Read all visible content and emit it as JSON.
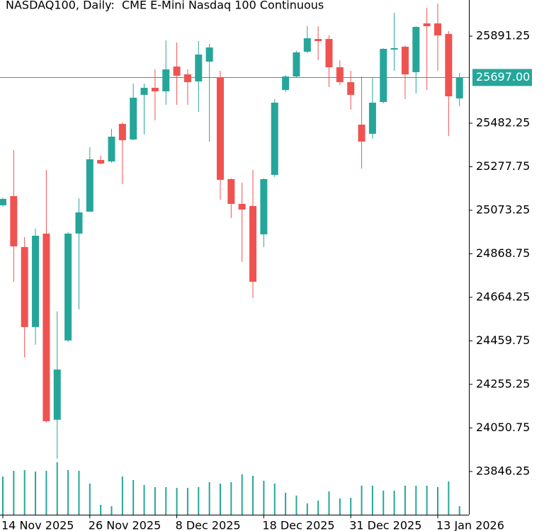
{
  "chart_data": {
    "type": "candlestick",
    "title": "NASDAQ100, Daily:  CME E-Mini Nasdaq 100 Continuous",
    "categories": [
      "14 Nov 2025",
      null,
      null,
      null,
      null,
      null,
      null,
      null,
      "26 Nov 2025",
      null,
      null,
      null,
      null,
      null,
      null,
      null,
      "8 Dec 2025",
      null,
      null,
      null,
      null,
      null,
      null,
      null,
      "18 Dec 2025",
      null,
      null,
      null,
      null,
      null,
      null,
      null,
      "31 Dec 2025",
      null,
      null,
      null,
      null,
      null,
      null,
      null,
      "13 Jan 2026",
      null,
      null
    ],
    "open": [
      25096.6,
      25139.8,
      24900.4,
      24524.7,
      24963.6,
      24089.1,
      24461.5,
      24963.6,
      25066.7,
      25309.4,
      25302.7,
      25478.9,
      25405.8,
      25615.3,
      25648.5,
      25631.9,
      25748.3,
      25711.7,
      25678.4,
      25771.5,
      25698.4,
      25219.6,
      25103.2,
      25093.3,
      24960.2,
      25239.6,
      25638.6,
      25701.7,
      25818.1,
      25877.9,
      25877.9,
      25745,
      25675.1,
      25475.6,
      25432.4,
      25582,
      25828,
      25841.4,
      25721.7,
      25951.1,
      25951.1,
      25901.2,
      25598.6
    ],
    "high": [
      25133.1,
      25355.9,
      24946.9,
      24986.9,
      25262.8,
      24597.8,
      24970.2,
      25129.8,
      25369.2,
      25329.3,
      25455.7,
      25485.6,
      25668.5,
      25668.5,
      25735,
      25871.3,
      25861.3,
      25735,
      25868,
      25854.7,
      25728.3,
      25222.9,
      25203,
      25262.8,
      25222.9,
      25595.3,
      25708.4,
      25821.4,
      25937.8,
      25937.8,
      25894.6,
      25778.2,
      25728.3,
      25701.7,
      25695.1,
      25834.7,
      26001,
      25848,
      25937.8,
      26024.25,
      26044.2,
      25914.5,
      25718.4
    ],
    "low": [
      25089.9,
      24737.4,
      24381.7,
      24441.6,
      24075.8,
      23906.3,
      24454.8,
      24607.8,
      25066.7,
      25289.4,
      25296.1,
      25196.3,
      25402.5,
      25429.1,
      25495.6,
      25568.7,
      25568.7,
      25568.7,
      25535.5,
      25395.8,
      25123.2,
      25036.7,
      24830.6,
      24661,
      24900.4,
      25229.6,
      25628.6,
      25695.1,
      25811.4,
      25778.2,
      25651.9,
      25661.8,
      25545.5,
      25269.5,
      25409.1,
      25575.4,
      25728.3,
      25595.3,
      25621.9,
      25638.6,
      25728.3,
      25422.4,
      25562.1
    ],
    "close": [
      25126.5,
      24903.7,
      24524.7,
      24953.6,
      24082.4,
      24325.1,
      24963.6,
      25063.3,
      25312.7,
      25292.8,
      25419.1,
      25402.5,
      25602,
      25648.5,
      25631.9,
      25735,
      25705.1,
      25675.1,
      25804.8,
      25838,
      25216.3,
      25103.2,
      25076.6,
      24737.4,
      25219.6,
      25578.7,
      25701.7,
      25814.8,
      25881.3,
      25868,
      25745,
      25675.1,
      25615.3,
      25395.8,
      25578.7,
      25831.4,
      25834.7,
      25711.7,
      25934.5,
      25937.8,
      25894.6,
      25608.6,
      25695.1
    ],
    "volume": [
      54,
      62,
      63,
      61,
      62,
      74,
      63,
      62,
      44,
      14,
      12,
      54,
      49,
      42,
      39,
      39,
      38,
      38,
      39,
      46,
      44,
      46,
      57,
      55,
      48,
      44,
      31,
      27,
      16,
      20,
      33,
      23,
      24,
      41,
      41,
      34,
      34,
      41,
      41,
      41,
      39,
      47,
      12
    ],
    "up_color": "#26a69a",
    "down_color": "#ef5350",
    "volume_color": "#26a69a",
    "ylim": [
      23643,
      26061
    ],
    "yticks": [
      25891.25,
      25482.25,
      25277.75,
      25073.25,
      24868.75,
      24664.25,
      24459.75,
      24255.25,
      24050.75,
      23846.25
    ],
    "last_price": {
      "value": 25697,
      "label": "25697.00"
    }
  }
}
